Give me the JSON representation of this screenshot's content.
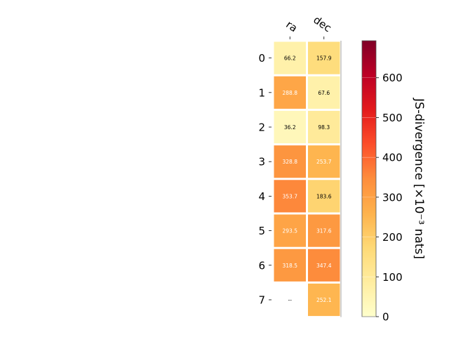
{
  "chart_data": {
    "type": "heatmap",
    "columns": [
      "ra",
      "dec"
    ],
    "rows": [
      "0",
      "1",
      "2",
      "3",
      "4",
      "5",
      "6",
      "7"
    ],
    "values": [
      [
        66.2,
        157.9
      ],
      [
        288.8,
        67.6
      ],
      [
        36.2,
        98.3
      ],
      [
        328.8,
        253.7
      ],
      [
        353.7,
        183.6
      ],
      [
        293.5,
        317.6
      ],
      [
        318.5,
        347.4
      ],
      [
        null,
        252.1
      ]
    ],
    "cell_labels": [
      [
        "66.2",
        "157.9"
      ],
      [
        "288.8",
        "67.6"
      ],
      [
        "36.2",
        "98.3"
      ],
      [
        "328.8",
        "253.7"
      ],
      [
        "353.7",
        "183.6"
      ],
      [
        "293.5",
        "317.6"
      ],
      [
        "318.5",
        "347.4"
      ],
      [
        "--",
        "252.1"
      ]
    ],
    "colorbar": {
      "label": "JS-divergence [×10⁻³ nats]",
      "ticks": [
        0,
        100,
        200,
        300,
        400,
        500,
        600
      ],
      "tick_labels": [
        "0",
        "100",
        "200",
        "300",
        "400",
        "500",
        "600"
      ],
      "range": [
        0,
        693
      ],
      "colormap": "YlOrRd"
    }
  }
}
